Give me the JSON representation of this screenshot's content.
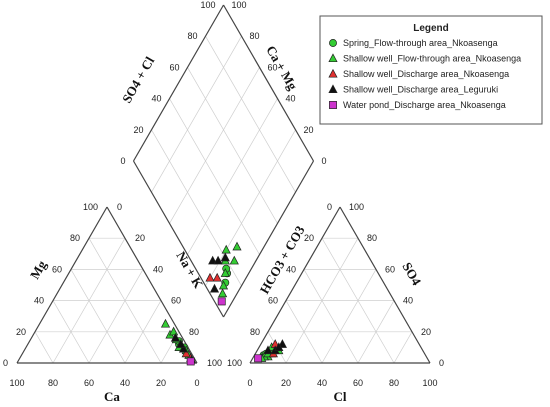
{
  "chart_data": {
    "type": "scatter",
    "subtype": "piper-diagram",
    "legend": {
      "title": "Legend",
      "placement": "top-right",
      "entries": [
        {
          "name": "Spring_Flow-through area_Nkoasenga",
          "marker": "circle",
          "color": "#33cc33"
        },
        {
          "name": "Shallow well_Flow-through area_Nkoasenga",
          "marker": "triangle",
          "color": "#33cc33"
        },
        {
          "name": "Shallow well_Discharge area_Nkoasenga",
          "marker": "triangle",
          "color": "#e03030"
        },
        {
          "name": "Shallow well_Discharge area_Leguruki",
          "marker": "triangle",
          "color": "#111111"
        },
        {
          "name": "Water pond_Discharge area_Nkoasenga",
          "marker": "square",
          "color": "#cc33cc"
        }
      ]
    },
    "axis_labels": {
      "cation_left": "Mg",
      "cation_right": "Na + K",
      "cation_bottom": "Ca",
      "anion_left": "HCO3 + CO3",
      "anion_right": "SO4",
      "anion_bottom": "Cl",
      "diamond_left": "SO4 + Cl",
      "diamond_right": "Ca + Mg"
    },
    "tick_labels": [
      "0",
      "20",
      "40",
      "60",
      "80",
      "100"
    ],
    "grid": true,
    "series": [
      {
        "name": "Spring_Flow-through area_Nkoasenga",
        "cations": [
          [
            2,
            10,
            88
          ],
          [
            4,
            12,
            84
          ],
          [
            3,
            14,
            83
          ]
        ],
        "anions": [
          [
            90,
            5,
            5
          ],
          [
            88,
            6,
            6
          ],
          [
            86,
            6,
            8
          ]
        ]
      },
      {
        "name": "Shallow well_Flow-through area_Nkoasenga",
        "cations": [
          [
            5,
            25,
            70
          ],
          [
            6,
            18,
            76
          ],
          [
            4,
            15,
            81
          ],
          [
            2,
            8,
            90
          ],
          [
            3,
            20,
            77
          ],
          [
            5,
            10,
            85
          ],
          [
            2,
            5,
            93
          ]
        ],
        "anions": [
          [
            85,
            6,
            9
          ],
          [
            88,
            4,
            8
          ],
          [
            83,
            10,
            7
          ],
          [
            90,
            4,
            6
          ],
          [
            80,
            8,
            12
          ],
          [
            87,
            6,
            7
          ],
          [
            92,
            3,
            5
          ]
        ]
      },
      {
        "name": "Shallow well_Discharge area_Nkoasenga",
        "cations": [
          [
            3,
            6,
            91
          ],
          [
            2,
            3,
            95
          ]
        ],
        "anions": [
          [
            84,
            6,
            10
          ],
          [
            80,
            12,
            8
          ]
        ]
      },
      {
        "name": "Shallow well_Discharge area_Leguruki",
        "cations": [
          [
            4,
            16,
            80
          ],
          [
            3,
            9,
            88
          ],
          [
            2,
            2,
            96
          ],
          [
            3,
            12,
            85
          ]
        ],
        "anions": [
          [
            82,
            8,
            10
          ],
          [
            76,
            12,
            12
          ],
          [
            86,
            8,
            6
          ],
          [
            79,
            10,
            11
          ]
        ]
      },
      {
        "name": "Water pond_Discharge area_Nkoasenga",
        "cations": [
          [
            3,
            1,
            96
          ]
        ],
        "anions": [
          [
            94,
            3,
            3
          ]
        ]
      }
    ],
    "point_encoding": "cations = [Ca, Mg, Na+K] %, anions = [HCO3+CO3, SO4, Cl] %"
  }
}
